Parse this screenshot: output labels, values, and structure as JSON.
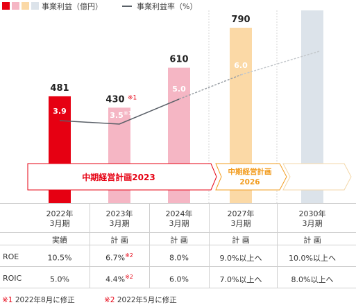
{
  "legend": {
    "colors": [
      "#e60012",
      "#f5b6c4",
      "#fbd9a6",
      "#dce3ea"
    ],
    "profit_label": "事業利益（億円）",
    "rate_label": "事業利益率（%）"
  },
  "chart_data": {
    "type": "bar",
    "categories": [
      "2022年3月期",
      "2023年3月期",
      "2024年3月期",
      "2027年3月期",
      "2030年3月期"
    ],
    "series": [
      {
        "name": "事業利益（億円）",
        "values": [
          481,
          430,
          610,
          790,
          null
        ],
        "labels": [
          "481",
          "430",
          "610",
          "790",
          ""
        ],
        "notes": [
          "",
          "※1",
          "",
          "",
          ""
        ],
        "colors": [
          "#e60012",
          "#f5b6c4",
          "#f5b6c4",
          "#fbd9a6",
          "#dce3ea"
        ]
      },
      {
        "name": "事業利益率（%）",
        "values": [
          3.9,
          3.5,
          5.0,
          6.0,
          null
        ],
        "labels": [
          "3.9",
          "3.5",
          "5.0",
          "6.0",
          ""
        ],
        "notes": [
          "",
          "※1",
          "",
          "",
          ""
        ]
      }
    ],
    "ylim": [
      0,
      800
    ],
    "plans": [
      {
        "label": "中期経営計画2023",
        "color": "#e60012"
      },
      {
        "label_line1": "中期経営計画",
        "label_line2": "2026",
        "color": "#f29c1f"
      }
    ]
  },
  "table": {
    "columns": [
      {
        "year": "2022年",
        "period": "3月期",
        "type": "実績",
        "roe": "10.5%",
        "roe_note": "",
        "roic": "5.0%",
        "roic_note": ""
      },
      {
        "year": "2023年",
        "period": "3月期",
        "type": "計 画",
        "roe": "6.7%",
        "roe_note": "※2",
        "roic": "4.4%",
        "roic_note": "※2"
      },
      {
        "year": "2024年",
        "period": "3月期",
        "type": "計 画",
        "roe": "8.0%",
        "roe_note": "",
        "roic": "6.0%",
        "roic_note": ""
      },
      {
        "year": "2027年",
        "period": "3月期",
        "type": "計 画",
        "roe": "9.0%以上へ",
        "roe_note": "",
        "roic": "7.0%以上へ",
        "roic_note": ""
      },
      {
        "year": "2030年",
        "period": "3月期",
        "type": "計 画",
        "roe": "10.0%以上へ",
        "roe_note": "",
        "roic": "8.0%以上へ",
        "roic_note": ""
      }
    ],
    "row_roe": "ROE",
    "row_roic": "ROIC"
  },
  "footnotes": {
    "n1_mark": "※1",
    "n1_text": "2022年8月に修正",
    "n2_mark": "※2",
    "n2_text": "2022年5月に修正"
  }
}
